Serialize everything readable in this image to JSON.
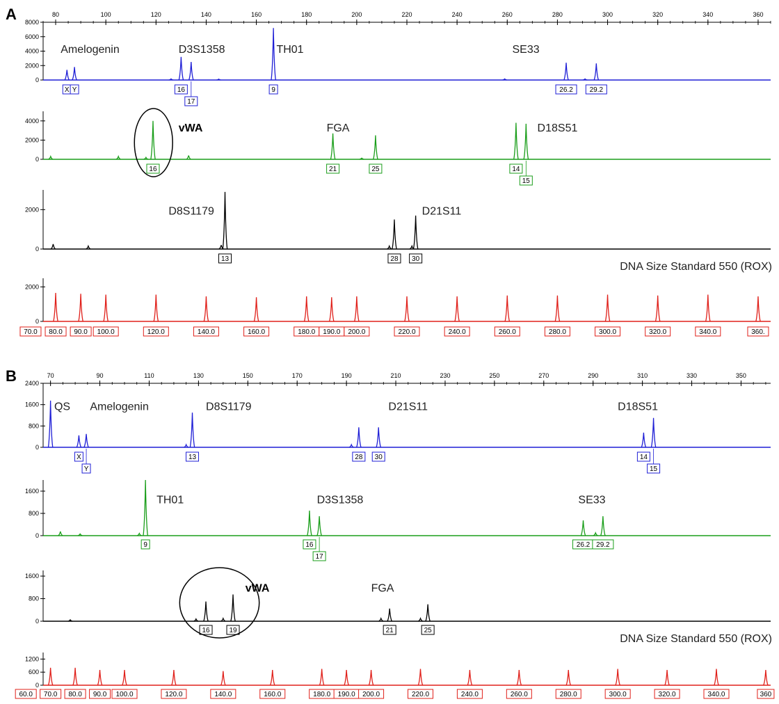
{
  "chart_data": [
    {
      "type": "line",
      "panel": "A",
      "x_axis": {
        "unit": "bp",
        "range": [
          75,
          365
        ],
        "ticks": [
          80,
          100,
          120,
          140,
          160,
          180,
          200,
          220,
          240,
          260,
          280,
          300,
          320,
          340,
          360
        ],
        "minor_step": 5
      },
      "traces": [
        {
          "color": "#1f1fd6",
          "ylim": [
            0,
            8000
          ],
          "yticks": [
            0,
            2000,
            4000,
            6000,
            8000
          ],
          "ytick_labels": [
            "0",
            "2000",
            "4000",
            "6000",
            "8000"
          ],
          "loci": [
            {
              "name": "Amelogenin",
              "x": 82,
              "bold": false
            },
            {
              "name": "D3S1358",
              "x": 129,
              "bold": false
            },
            {
              "name": "TH01",
              "x": 168,
              "bold": false
            },
            {
              "name": "SE33",
              "x": 262,
              "bold": false
            }
          ],
          "peaks": [
            [
              84.5,
              1400
            ],
            [
              87.5,
              1800
            ],
            [
              130,
              3200
            ],
            [
              134,
              2500
            ],
            [
              166.8,
              7200
            ],
            [
              283.5,
              2400
            ],
            [
              295.5,
              2300
            ],
            [
              126,
              150
            ],
            [
              145,
              120
            ],
            [
              259,
              150
            ],
            [
              291,
              150
            ]
          ],
          "alleles": [
            {
              "label": "X",
              "x": 84.5,
              "row": 0
            },
            {
              "label": "Y",
              "x": 87.5,
              "row": 0
            },
            {
              "label": "16",
              "x": 130,
              "row": 0
            },
            {
              "label": "17",
              "x": 134,
              "row": 1
            },
            {
              "label": "9",
              "x": 166.8,
              "row": 0
            },
            {
              "label": "26.2",
              "x": 283.5,
              "row": 0
            },
            {
              "label": "29.2",
              "x": 295.5,
              "row": 0
            }
          ],
          "circle": null
        },
        {
          "color": "#1a9e1a",
          "ylim": [
            0,
            5000
          ],
          "yticks": [
            0,
            2000,
            4000
          ],
          "ytick_labels": [
            "0",
            "2000",
            "4000"
          ],
          "loci": [
            {
              "name": "vWA",
              "x": 129,
              "bold": true
            },
            {
              "name": "FGA",
              "x": 188,
              "bold": false
            },
            {
              "name": "D18S51",
              "x": 272,
              "bold": false
            }
          ],
          "peaks": [
            [
              118.8,
              4000
            ],
            [
              190.5,
              2700
            ],
            [
              207.5,
              2500
            ],
            [
              263.5,
              3800
            ],
            [
              267.5,
              3700
            ],
            [
              105,
              300
            ],
            [
              116,
              200
            ],
            [
              133,
              400
            ],
            [
              78,
              300
            ],
            [
              202,
              120
            ]
          ],
          "alleles": [
            {
              "label": "16",
              "x": 118.8,
              "row": 0
            },
            {
              "label": "21",
              "x": 190.5,
              "row": 0
            },
            {
              "label": "25",
              "x": 207.5,
              "row": 0
            },
            {
              "label": "14",
              "x": 263.5,
              "row": 0
            },
            {
              "label": "15",
              "x": 267.5,
              "row": 1
            }
          ],
          "circle": {
            "x": 119,
            "width_bp": 13
          }
        },
        {
          "color": "#000000",
          "ylim": [
            0,
            3000
          ],
          "yticks": [
            0,
            2000
          ],
          "ytick_labels": [
            "0",
            "2000"
          ],
          "loci": [
            {
              "name": "D8S1179",
              "x": 125,
              "bold": false
            },
            {
              "name": "D21S11",
              "x": 226,
              "bold": false
            }
          ],
          "peaks": [
            [
              147.5,
              2900
            ],
            [
              215,
              1500
            ],
            [
              223.5,
              1700
            ],
            [
              79,
              250
            ],
            [
              93,
              150
            ],
            [
              146,
              200
            ],
            [
              213,
              150
            ],
            [
              222,
              150
            ]
          ],
          "alleles": [
            {
              "label": "13",
              "x": 147.5,
              "row": 0
            },
            {
              "label": "28",
              "x": 215,
              "row": 0
            },
            {
              "label": "30",
              "x": 223.5,
              "row": 0
            }
          ],
          "circle": null,
          "right_title": "DNA Size Standard 550 (ROX)"
        },
        {
          "color": "#e0201a",
          "ylim": [
            0,
            2500
          ],
          "yticks": [
            0,
            2000
          ],
          "ytick_labels": [
            "0",
            "2000"
          ],
          "loci": [],
          "peaks": [
            [
              80,
              1650
            ],
            [
              90,
              1600
            ],
            [
              100,
              1550
            ],
            [
              120,
              1550
            ],
            [
              140,
              1450
            ],
            [
              160,
              1400
            ],
            [
              180,
              1450
            ],
            [
              190,
              1400
            ],
            [
              200,
              1450
            ],
            [
              220,
              1450
            ],
            [
              240,
              1450
            ],
            [
              260,
              1500
            ],
            [
              280,
              1500
            ],
            [
              300,
              1550
            ],
            [
              320,
              1500
            ],
            [
              340,
              1550
            ],
            [
              360,
              1450
            ]
          ],
          "alleles": [],
          "circle": null,
          "size_labels": [
            "70.0",
            "80.0",
            "90.0",
            "100.0",
            "120.0",
            "140.0",
            "160.0",
            "180.0",
            "190.0",
            "200.0",
            "220.0",
            "240.0",
            "260.0",
            "280.0",
            "300.0",
            "320.0",
            "340.0",
            "360."
          ],
          "size_positions": [
            70,
            80,
            90,
            100,
            120,
            140,
            160,
            180,
            190,
            200,
            220,
            240,
            260,
            280,
            300,
            320,
            340,
            360
          ]
        }
      ]
    },
    {
      "type": "line",
      "panel": "B",
      "x_axis": {
        "unit": "bp",
        "range": [
          67,
          362
        ],
        "ticks": [
          70,
          90,
          110,
          130,
          150,
          170,
          190,
          210,
          230,
          250,
          270,
          290,
          310,
          330,
          350
        ],
        "minor_step": 5
      },
      "traces": [
        {
          "color": "#1f1fd6",
          "ylim": [
            0,
            2400
          ],
          "yticks": [
            0,
            800,
            1600,
            2400
          ],
          "ytick_labels": [
            "0",
            "800",
            "1600",
            "2400"
          ],
          "loci": [
            {
              "name": "QS",
              "x": 71.5,
              "bold": false
            },
            {
              "name": "Amelogenin",
              "x": 86,
              "bold": false
            },
            {
              "name": "D8S1179",
              "x": 133,
              "bold": false
            },
            {
              "name": "D21S11",
              "x": 207,
              "bold": false
            },
            {
              "name": "D18S51",
              "x": 300,
              "bold": false
            }
          ],
          "peaks": [
            [
              70,
              1750
            ],
            [
              81.5,
              450
            ],
            [
              84.5,
              500
            ],
            [
              127.5,
              1300
            ],
            [
              195,
              750
            ],
            [
              203,
              750
            ],
            [
              310.5,
              550
            ],
            [
              314.5,
              1100
            ],
            [
              125,
              100
            ],
            [
              192,
              100
            ]
          ],
          "alleles": [
            {
              "label": "X",
              "x": 81.5,
              "row": 0
            },
            {
              "label": "Y",
              "x": 84.5,
              "row": 1
            },
            {
              "label": "13",
              "x": 127.5,
              "row": 0
            },
            {
              "label": "28",
              "x": 195,
              "row": 0
            },
            {
              "label": "30",
              "x": 203,
              "row": 0
            },
            {
              "label": "14",
              "x": 310.5,
              "row": 0
            },
            {
              "label": "15",
              "x": 314.5,
              "row": 1
            }
          ],
          "circle": null
        },
        {
          "color": "#1a9e1a",
          "ylim": [
            0,
            2000
          ],
          "yticks": [
            0,
            800,
            1600
          ],
          "ytick_labels": [
            "0",
            "800",
            "1600"
          ],
          "loci": [
            {
              "name": "TH01",
              "x": 113,
              "bold": false
            },
            {
              "name": "D3S1358",
              "x": 178,
              "bold": false
            },
            {
              "name": "SE33",
              "x": 284,
              "bold": false
            }
          ],
          "peaks": [
            [
              108.5,
              2000
            ],
            [
              175,
              900
            ],
            [
              179,
              700
            ],
            [
              286,
              550
            ],
            [
              294,
              700
            ],
            [
              74,
              150
            ],
            [
              106,
              80
            ],
            [
              82,
              60
            ],
            [
              291,
              100
            ]
          ],
          "alleles": [
            {
              "label": "9",
              "x": 108.5,
              "row": 0
            },
            {
              "label": "16",
              "x": 175,
              "row": 0
            },
            {
              "label": "17",
              "x": 179,
              "row": 1
            },
            {
              "label": "26.2",
              "x": 286,
              "row": 0
            },
            {
              "label": "29.2",
              "x": 294,
              "row": 0
            }
          ],
          "circle": null
        },
        {
          "color": "#000000",
          "ylim": [
            0,
            1800
          ],
          "yticks": [
            0,
            800,
            1600
          ],
          "ytick_labels": [
            "0",
            "800",
            "1600"
          ],
          "loci": [
            {
              "name": "vWA",
              "x": 149,
              "bold": true
            },
            {
              "name": "FGA",
              "x": 200,
              "bold": false
            }
          ],
          "peaks": [
            [
              133,
              700
            ],
            [
              144,
              950
            ],
            [
              207.5,
              450
            ],
            [
              223,
              600
            ],
            [
              78,
              50
            ],
            [
              129,
              80
            ],
            [
              140,
              100
            ],
            [
              204,
              100
            ],
            [
              220,
              100
            ]
          ],
          "alleles": [
            {
              "label": "16",
              "x": 133,
              "row": 0
            },
            {
              "label": "19",
              "x": 144,
              "row": 0
            },
            {
              "label": "21",
              "x": 207.5,
              "row": 0
            },
            {
              "label": "25",
              "x": 223,
              "row": 0
            }
          ],
          "circle": {
            "x": 138.5,
            "width_bp": 30
          },
          "right_title": "DNA Size Standard 550 (ROX)"
        },
        {
          "color": "#e0201a",
          "ylim": [
            0,
            1500
          ],
          "yticks": [
            0,
            600,
            1200
          ],
          "ytick_labels": [
            "0",
            "600",
            "1200"
          ],
          "loci": [],
          "peaks": [
            [
              70,
              800
            ],
            [
              80,
              800
            ],
            [
              90,
              700
            ],
            [
              100,
              700
            ],
            [
              120,
              700
            ],
            [
              140,
              650
            ],
            [
              160,
              700
            ],
            [
              180,
              750
            ],
            [
              190,
              700
            ],
            [
              200,
              700
            ],
            [
              220,
              750
            ],
            [
              240,
              700
            ],
            [
              260,
              700
            ],
            [
              280,
              700
            ],
            [
              300,
              750
            ],
            [
              320,
              700
            ],
            [
              340,
              750
            ],
            [
              360,
              700
            ]
          ],
          "alleles": [],
          "circle": null,
          "size_labels": [
            "60.0",
            "70.0",
            "80.0",
            "90.0",
            "100.0",
            "120.0",
            "140.0",
            "160.0",
            "180.0",
            "190.0",
            "200.0",
            "220.0",
            "240.0",
            "260.0",
            "280.0",
            "300.0",
            "320.0",
            "340.0",
            "360"
          ],
          "size_positions": [
            60,
            70,
            80,
            90,
            100,
            120,
            140,
            160,
            180,
            190,
            200,
            220,
            240,
            260,
            280,
            300,
            320,
            340,
            360
          ]
        }
      ]
    }
  ]
}
